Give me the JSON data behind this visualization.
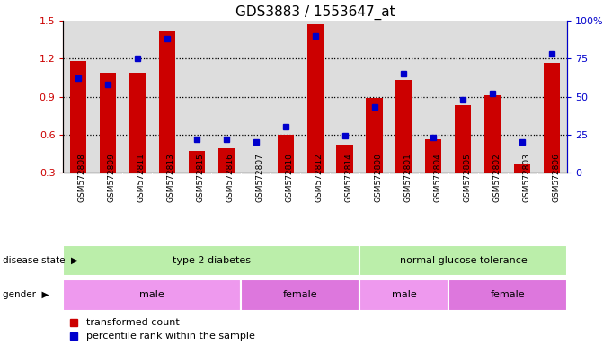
{
  "title": "GDS3883 / 1553647_at",
  "samples": [
    "GSM572808",
    "GSM572809",
    "GSM572811",
    "GSM572813",
    "GSM572815",
    "GSM572816",
    "GSM572807",
    "GSM572810",
    "GSM572812",
    "GSM572814",
    "GSM572800",
    "GSM572801",
    "GSM572804",
    "GSM572805",
    "GSM572802",
    "GSM572803",
    "GSM572806"
  ],
  "bar_values": [
    1.18,
    1.09,
    1.09,
    1.42,
    0.47,
    0.49,
    0.3,
    0.6,
    1.47,
    0.52,
    0.89,
    1.03,
    0.56,
    0.83,
    0.91,
    0.37,
    1.17
  ],
  "dot_values": [
    62,
    58,
    75,
    88,
    22,
    22,
    20,
    30,
    90,
    24,
    43,
    65,
    23,
    48,
    52,
    20,
    78
  ],
  "bar_color": "#cc0000",
  "dot_color": "#0000cc",
  "ylim_left": [
    0.3,
    1.5
  ],
  "ylim_right": [
    0,
    100
  ],
  "yticks_left": [
    0.3,
    0.6,
    0.9,
    1.2,
    1.5
  ],
  "yticks_right": [
    0,
    25,
    50,
    75,
    100
  ],
  "ytick_labels_right": [
    "0",
    "25",
    "50",
    "75",
    "100%"
  ],
  "grid_values": [
    0.6,
    0.9,
    1.2
  ],
  "disease_state_regions": [
    {
      "label": "type 2 diabetes",
      "start": 0,
      "end": 9,
      "color": "#bbeeaa"
    },
    {
      "label": "normal glucose tolerance",
      "start": 10,
      "end": 16,
      "color": "#bbeeaa"
    }
  ],
  "gender_regions": [
    {
      "label": "male",
      "start": 0,
      "end": 5,
      "color": "#ee99ee"
    },
    {
      "label": "female",
      "start": 6,
      "end": 9,
      "color": "#dd77dd"
    },
    {
      "label": "male",
      "start": 10,
      "end": 12,
      "color": "#ee99ee"
    },
    {
      "label": "female",
      "start": 13,
      "end": 16,
      "color": "#dd77dd"
    }
  ],
  "legend_bar_label": "transformed count",
  "legend_dot_label": "percentile rank within the sample",
  "disease_state_label": "disease state",
  "gender_label": "gender",
  "plot_bg_color": "#dddddd",
  "xtick_bg_color": "#cccccc"
}
